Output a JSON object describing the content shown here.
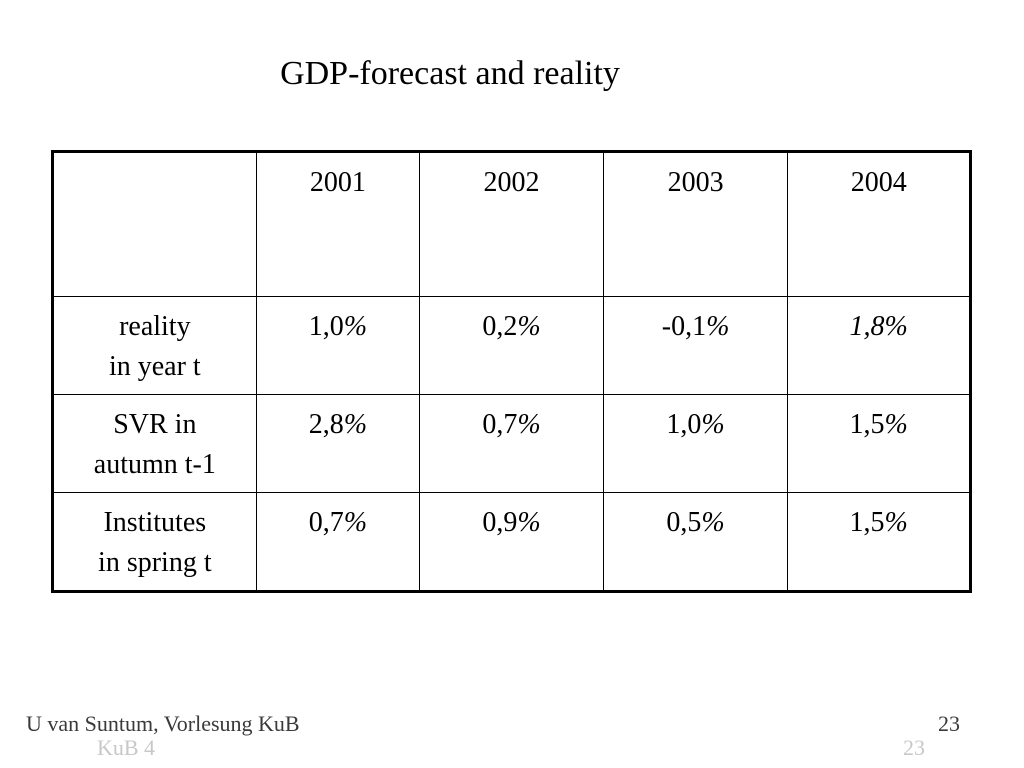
{
  "slide": {
    "title": "GDP-forecast and reality"
  },
  "table": {
    "corner": "",
    "columns": [
      "2001",
      "2002",
      "2003",
      "2004"
    ],
    "rows": [
      {
        "label_line1": "reality",
        "label_line2": "in year t",
        "values": [
          {
            "num": "1,0",
            "unit": "%"
          },
          {
            "num": "0,2",
            "unit": "%"
          },
          {
            "num": "-0,1",
            "unit": "%"
          },
          {
            "num": "1,8%",
            "unit": ""
          }
        ]
      },
      {
        "label_line1": "SVR in",
        "label_line2": "autumn t-1",
        "values": [
          {
            "num": "2,8",
            "unit": "%"
          },
          {
            "num": "0,7",
            "unit": "%"
          },
          {
            "num": "1,0",
            "unit": "%"
          },
          {
            "num": "1,5",
            "unit": "%"
          }
        ]
      },
      {
        "label_line1": "Institutes",
        "label_line2": "in spring t",
        "values": [
          {
            "num": "0,7",
            "unit": "%"
          },
          {
            "num": "0,9",
            "unit": "%"
          },
          {
            "num": "0,5",
            "unit": "%"
          },
          {
            "num": "1,5",
            "unit": "%"
          }
        ]
      }
    ]
  },
  "footer": {
    "author": "U van Suntum, Vorlesung KuB",
    "page_number": "23",
    "ghost_left": "KuB 4",
    "ghost_right": "23"
  }
}
